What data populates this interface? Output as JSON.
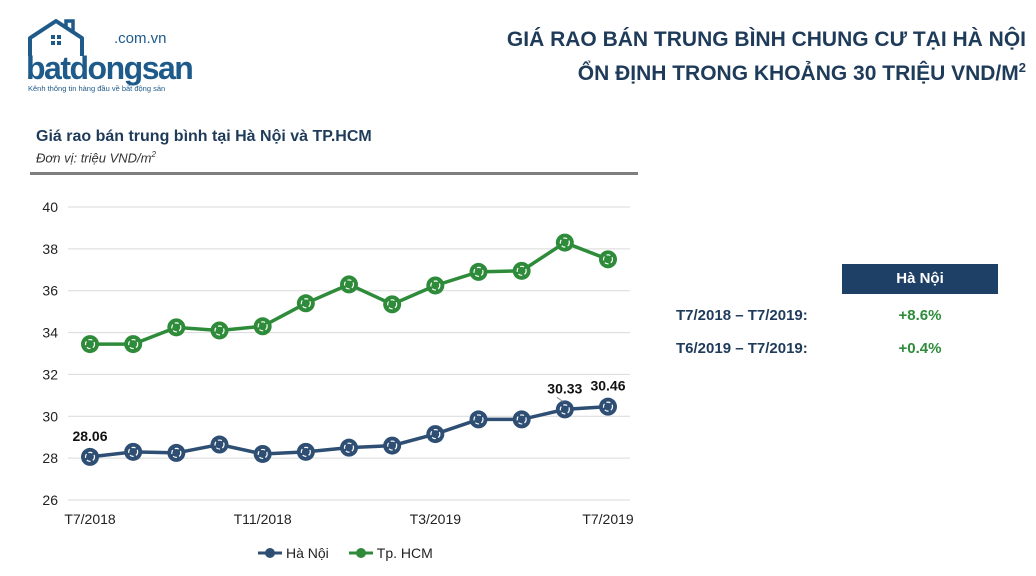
{
  "logo": {
    "domain": ".com.vn",
    "brand": "batdongsan",
    "tagline": "Kênh thông tin hàng đầu về bất động sản"
  },
  "headline": {
    "line1": "GIÁ RAO BÁN TRUNG BÌNH CHUNG CƯ TẠI HÀ NỘI",
    "line2": "ỔN ĐỊNH TRONG KHOẢNG 30 TRIỆU VND/M",
    "line2_sup": "2"
  },
  "chart_title": "Giá rao bán trung bình tại Hà Nội và TP.HCM",
  "chart_unit": "Đơn vị: triệu VND/m",
  "chart_unit_sup": "2",
  "chart_data": {
    "type": "line",
    "x": [
      "T7/2018",
      "T8/2018",
      "T9/2018",
      "T10/2018",
      "T11/2018",
      "T12/2018",
      "T1/2019",
      "T2/2019",
      "T3/2019",
      "T4/2019",
      "T5/2019",
      "T6/2019",
      "T7/2019"
    ],
    "x_tick_labels": [
      {
        "index": 0,
        "label": "T7/2018"
      },
      {
        "index": 4,
        "label": "T11/2018"
      },
      {
        "index": 8,
        "label": "T3/2019"
      },
      {
        "index": 12,
        "label": "T7/2019"
      }
    ],
    "ylim": [
      26,
      40
    ],
    "yticks": [
      26,
      28,
      30,
      32,
      34,
      36,
      38,
      40
    ],
    "grid": true,
    "legend_placement": "bottom",
    "series": [
      {
        "name": "Hà Nội",
        "color": "#2e4f73",
        "values": [
          28.06,
          28.3,
          28.25,
          28.65,
          28.2,
          28.3,
          28.5,
          28.6,
          29.15,
          29.85,
          29.85,
          30.33,
          30.46
        ],
        "data_labels": [
          {
            "index": 0,
            "text": "28.06"
          },
          {
            "index": 11,
            "text": "30.33"
          },
          {
            "index": 12,
            "text": "30.46"
          }
        ]
      },
      {
        "name": "Tp. HCM",
        "color": "#2e8b3a",
        "values": [
          33.45,
          33.45,
          34.25,
          34.1,
          34.3,
          35.4,
          36.3,
          35.35,
          36.25,
          36.9,
          36.95,
          38.3,
          37.5
        ],
        "data_labels": []
      }
    ]
  },
  "side_table": {
    "header": "Hà Nội",
    "rows": [
      {
        "label": "T7/2018 – T7/2019:",
        "value": "+8.6%"
      },
      {
        "label": "T6/2019 – T7/2019:",
        "value": "+0.4%"
      }
    ]
  }
}
